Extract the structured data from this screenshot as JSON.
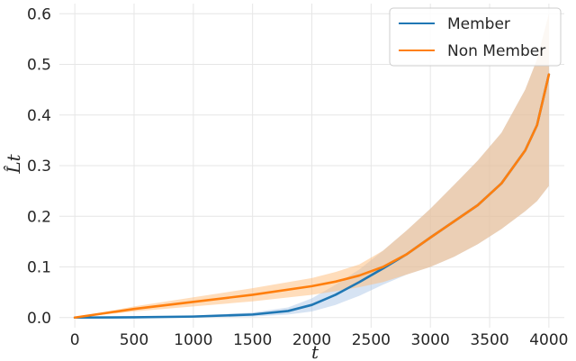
{
  "chart_data": {
    "type": "line",
    "xlabel": "t",
    "ylabel": "L̂t",
    "xlim": [
      -130,
      4130
    ],
    "ylim": [
      -0.02,
      0.62
    ],
    "xticks": [
      0,
      500,
      1000,
      1500,
      2000,
      2500,
      3000,
      3500,
      4000
    ],
    "xtick_labels": [
      "0",
      "500",
      "1000",
      "1500",
      "2000",
      "2500",
      "3000",
      "3500",
      "4000"
    ],
    "yticks": [
      0.0,
      0.1,
      0.2,
      0.3,
      0.4,
      0.5,
      0.6
    ],
    "ytick_labels": [
      "0.0",
      "0.1",
      "0.2",
      "0.3",
      "0.4",
      "0.5",
      "0.6"
    ],
    "grid": true,
    "legend_position": "top-right",
    "series": [
      {
        "name": "Member",
        "color": "#1f77b4",
        "band_color": "#aec7e8",
        "x": [
          0,
          500,
          1000,
          1500,
          1800,
          2000,
          2200,
          2400,
          2600,
          2800,
          3000,
          3200,
          3400,
          3600,
          3800,
          3900,
          4000
        ],
        "y": [
          0.0,
          0.0005,
          0.002,
          0.006,
          0.013,
          0.025,
          0.045,
          0.07,
          0.097,
          0.125,
          0.158,
          0.19,
          0.222,
          0.265,
          0.33,
          0.38,
          0.48
        ],
        "lower": [
          0.0,
          0.0,
          0.0,
          0.002,
          0.006,
          0.012,
          0.025,
          0.043,
          0.065,
          0.085,
          0.1,
          0.12,
          0.145,
          0.175,
          0.21,
          0.23,
          0.26
        ],
        "upper": [
          0.0,
          0.001,
          0.004,
          0.01,
          0.02,
          0.038,
          0.065,
          0.095,
          0.132,
          0.172,
          0.215,
          0.262,
          0.31,
          0.365,
          0.45,
          0.51,
          0.6
        ]
      },
      {
        "name": "Non Member",
        "color": "#ff7f0e",
        "band_color": "#ffbb78",
        "x": [
          0,
          500,
          1000,
          1500,
          2000,
          2200,
          2400,
          2600,
          2800,
          3000,
          3200,
          3400,
          3600,
          3800,
          3900,
          4000
        ],
        "y": [
          0.0,
          0.017,
          0.031,
          0.045,
          0.062,
          0.071,
          0.083,
          0.1,
          0.125,
          0.158,
          0.19,
          0.222,
          0.265,
          0.33,
          0.38,
          0.48
        ],
        "lower": [
          0.0,
          0.012,
          0.022,
          0.032,
          0.045,
          0.052,
          0.06,
          0.07,
          0.085,
          0.1,
          0.12,
          0.145,
          0.175,
          0.21,
          0.23,
          0.26
        ],
        "upper": [
          0.0,
          0.022,
          0.04,
          0.058,
          0.078,
          0.09,
          0.105,
          0.132,
          0.172,
          0.215,
          0.262,
          0.31,
          0.365,
          0.45,
          0.51,
          0.6
        ]
      }
    ]
  }
}
